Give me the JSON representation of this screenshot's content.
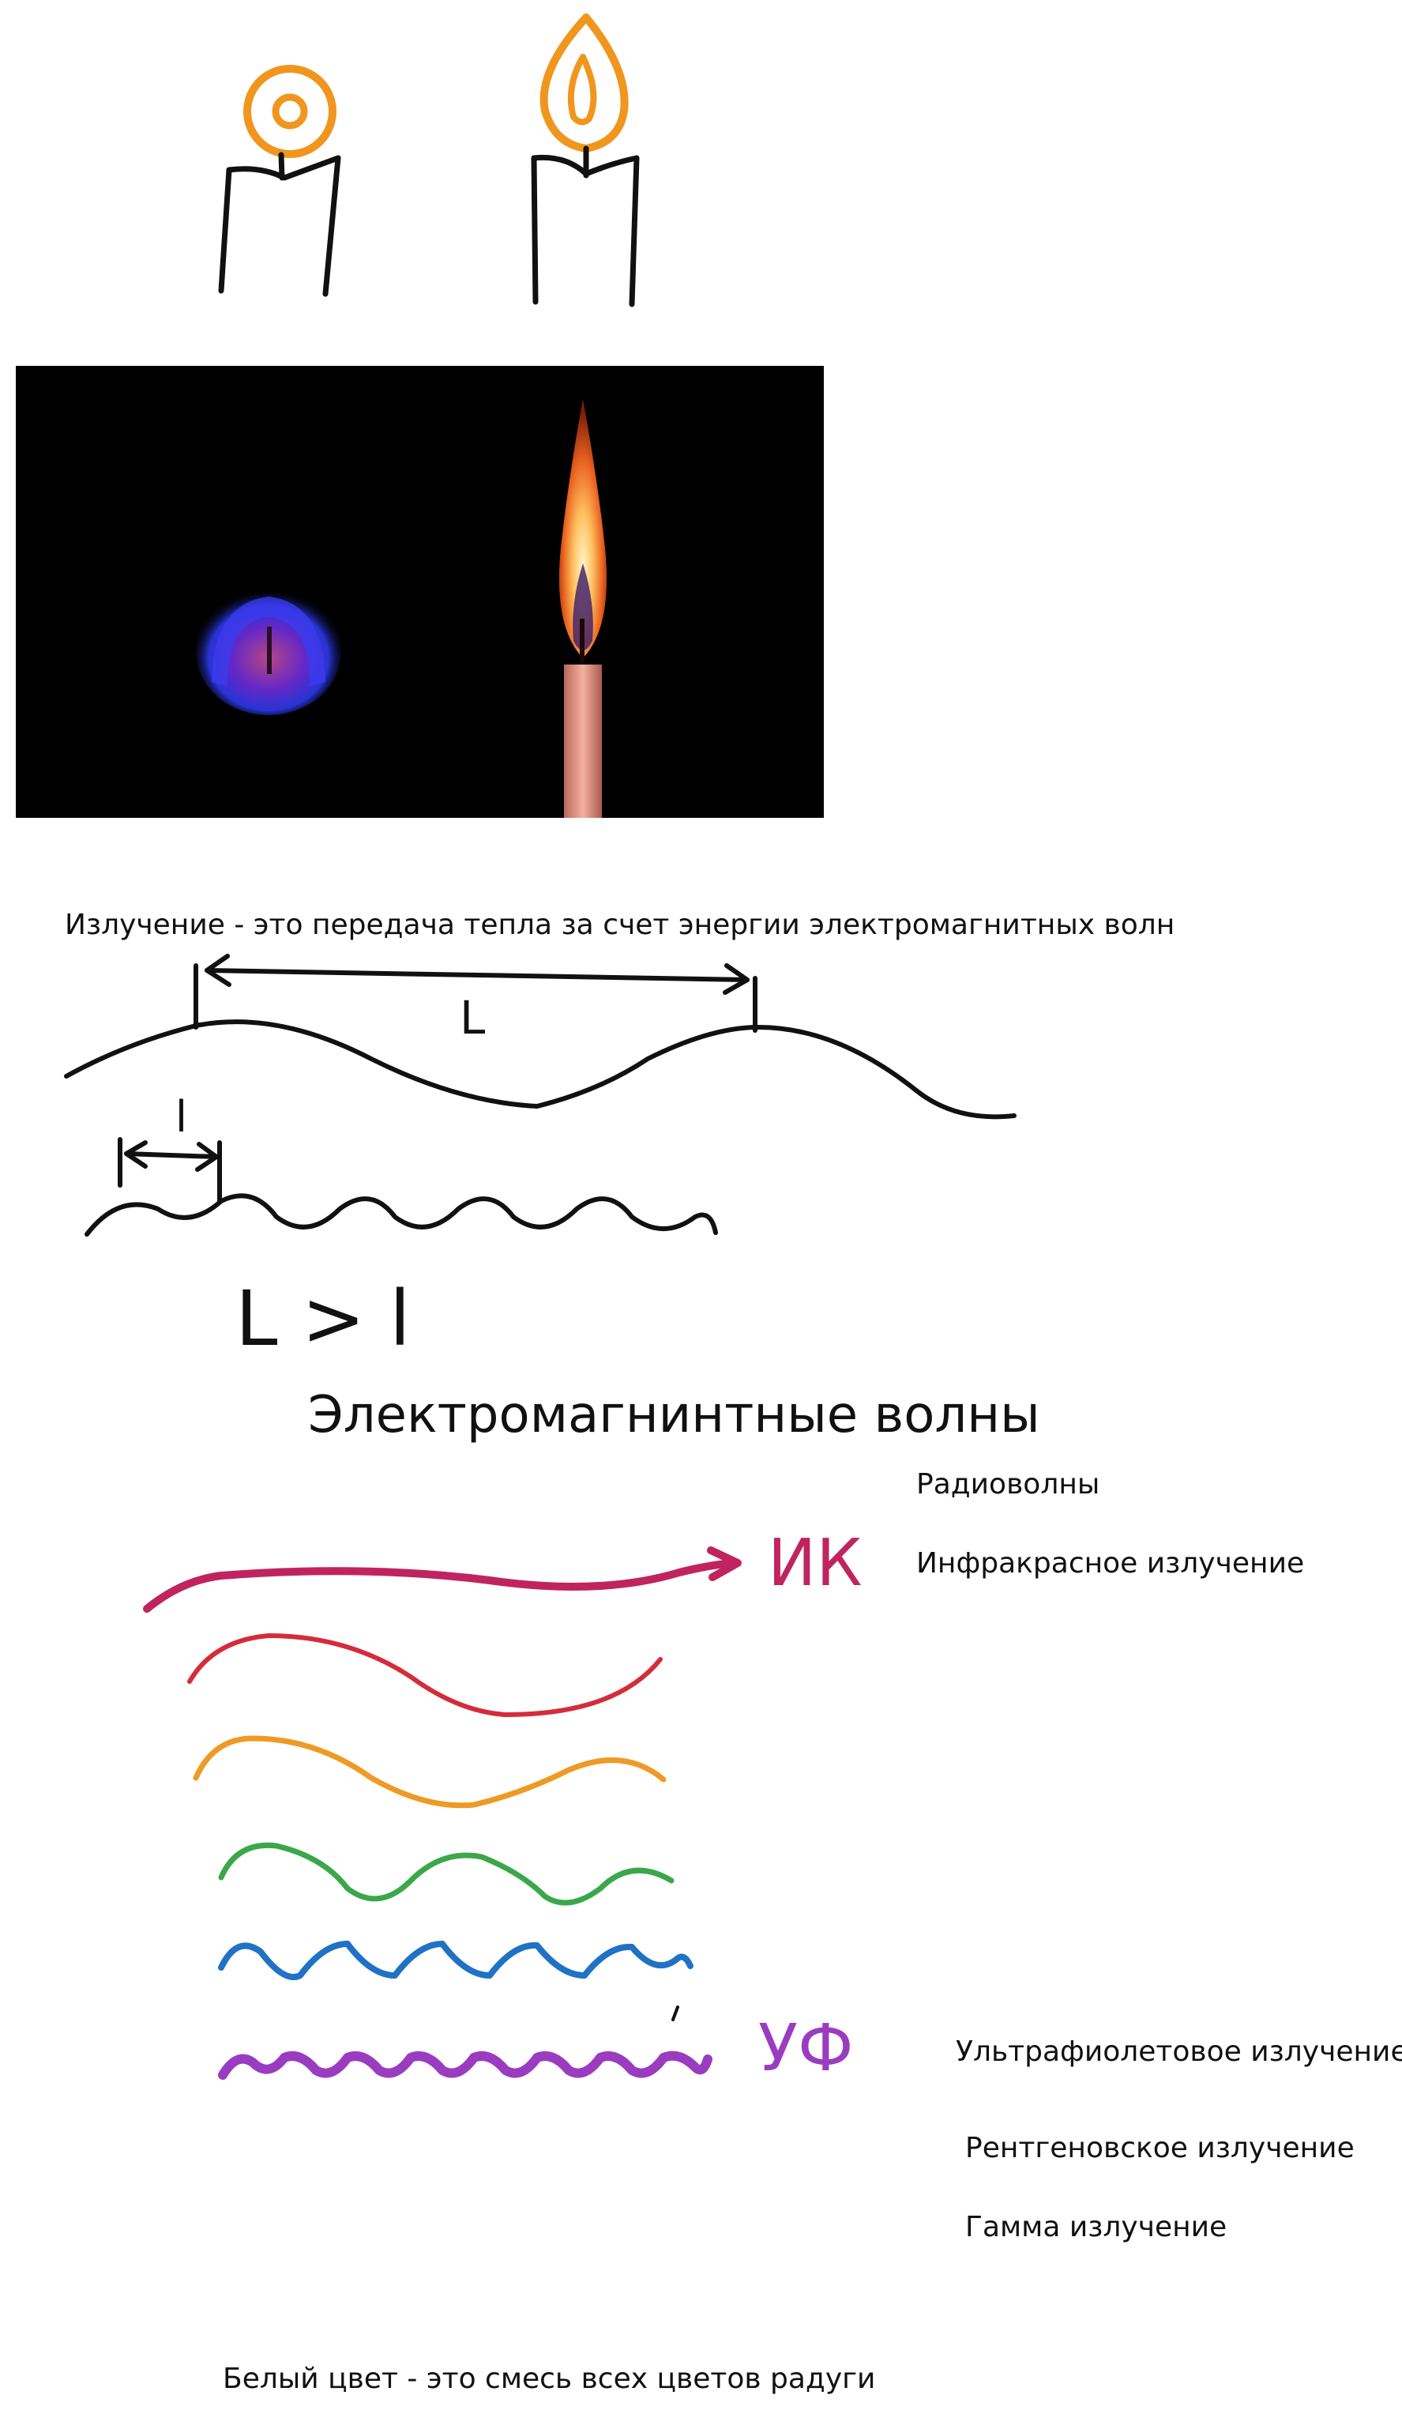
{
  "notes": {
    "definition": "Излучение - это передача тепла за счет энергии электромагнитных волн",
    "wavelength_big": "L",
    "wavelength_small": "l",
    "comparison": "L > l",
    "heading": "Электромагнинтные волны",
    "ir_short": "ИК",
    "uv_short": "УФ",
    "spectrum_list": [
      "Радиоволны",
      "Инфракрасное излучение",
      "Ультрафиолетовое излучение",
      "Рентгеновское излучение",
      "Гамма излучение"
    ],
    "white_light": "Белый цвет - это смесь всех цветов радуги"
  },
  "colors": {
    "ink": "#111111",
    "flame_orange": "#f0961e",
    "ir_magenta": "#c0245e",
    "red": "#d42c3a",
    "orange": "#ef9a24",
    "green": "#3aa84a",
    "blue": "#1f72c4",
    "violet": "#9a3cc0"
  }
}
